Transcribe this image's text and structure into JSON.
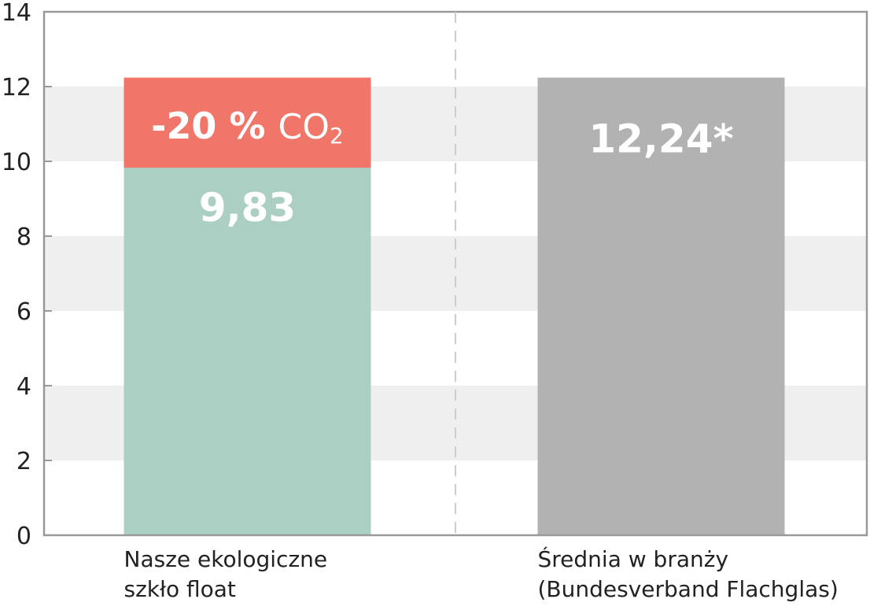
{
  "chart_data": {
    "type": "bar",
    "stacked": true,
    "ylim": [
      0,
      14
    ],
    "yticks": [
      "0",
      "2",
      "4",
      "6",
      "8",
      "10",
      "12",
      "14"
    ],
    "ytick_values": [
      0,
      2,
      4,
      6,
      8,
      10,
      12,
      14
    ],
    "grid": "alternating horizontal bands",
    "categories": [
      {
        "line1": "Nasze ekologiczne",
        "line2": "szkło float"
      },
      {
        "line1": "Średnia w branży",
        "line2": "(Bundesverband Flachglas)"
      }
    ],
    "bars": [
      {
        "segments": [
          {
            "value": 9.83,
            "label": "9,83",
            "color": "#abd0c3"
          },
          {
            "value": 2.41,
            "label_bold": "-20 %",
            "label_regular": "CO",
            "label_sub": "2",
            "color": "#f0766a"
          }
        ]
      },
      {
        "segments": [
          {
            "value": 12.24,
            "label": "12,24*",
            "color": "#b2b2b2"
          }
        ]
      }
    ],
    "colors": {
      "band": "#efefef",
      "axis": "#999999",
      "divider": "#cccccc"
    }
  }
}
